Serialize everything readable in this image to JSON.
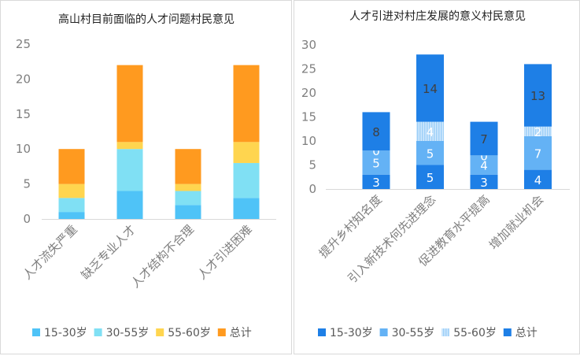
{
  "chart_data": [
    {
      "type": "bar",
      "stacked": true,
      "title": "高山村目前面临的人才问题村民意见",
      "categories": [
        "人才流失严重",
        "缺乏专业人才",
        "人才结构不合理",
        "人才引进困难"
      ],
      "series": [
        {
          "name": "15-30岁",
          "values": [
            1,
            4,
            2,
            3
          ],
          "color": "#4fc3f7"
        },
        {
          "name": "30-55岁",
          "values": [
            2,
            6,
            2,
            5
          ],
          "color": "#80e0f4"
        },
        {
          "name": "55-60岁",
          "values": [
            2,
            1,
            1,
            3
          ],
          "color": "#ffd54f"
        },
        {
          "name": "总计",
          "values": [
            5,
            11,
            5,
            11
          ],
          "color": "#ff9a1f"
        }
      ],
      "ylim": [
        0,
        25
      ],
      "yticks": [
        0,
        5,
        10,
        15,
        20,
        25
      ],
      "grid": false,
      "legend": "bottom",
      "data_labels": false
    },
    {
      "type": "bar",
      "stacked": true,
      "title": "人才引进对村庄发展的意义村民意见",
      "categories": [
        "提升乡村知名度",
        "引入新技术何先进理念",
        "促进教育水平提高",
        "增加就业机会"
      ],
      "series": [
        {
          "name": "15-30岁",
          "values": [
            3,
            5,
            3,
            4
          ],
          "color": "#1e7fe6",
          "pattern": "solid"
        },
        {
          "name": "30-55岁",
          "values": [
            5,
            5,
            4,
            7
          ],
          "color": "#64b2f5",
          "pattern": "solid"
        },
        {
          "name": "55-60岁",
          "values": [
            0,
            4,
            0,
            2
          ],
          "color": "#b3dcfb",
          "pattern": "striped"
        },
        {
          "name": "总计",
          "values": [
            8,
            14,
            7,
            13
          ],
          "color": "#1e7fe6",
          "pattern": "solid"
        }
      ],
      "ylim": [
        0,
        30
      ],
      "yticks": [
        0,
        5,
        10,
        15,
        20,
        25,
        30
      ],
      "grid": false,
      "legend": "bottom",
      "data_labels": true
    }
  ]
}
